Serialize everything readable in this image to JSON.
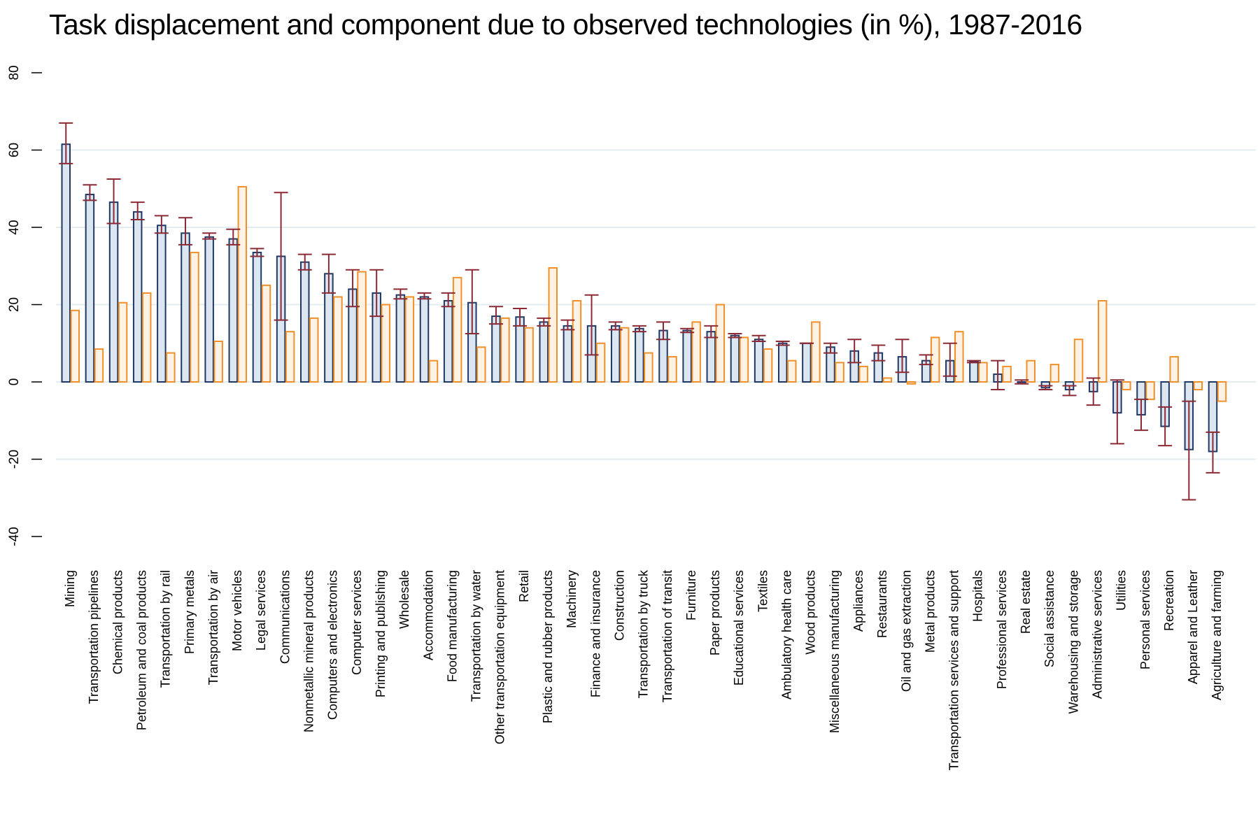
{
  "chart_data": {
    "type": "bar",
    "title": "Task displacement and component due to observed technologies (in %), 1987-2016",
    "xlabel": "",
    "ylabel": "",
    "ylim": [
      -40,
      80
    ],
    "yticks": [
      -40,
      -20,
      0,
      20,
      40,
      60,
      80
    ],
    "grid": true,
    "legend": "none",
    "colors": {
      "primary_fill": "#dce6f0",
      "primary_stroke": "#1f3864",
      "secondary_fill": "#fdf2e4",
      "secondary_stroke": "#f0902a",
      "errorbar": "#8b2a35",
      "grid": "#e3ecef"
    },
    "categories": [
      "Mining",
      "Transportation pipelines",
      "Chemical products",
      "Petroleum and coal products",
      "Transportation by rail",
      "Primary metals",
      "Transportation by air",
      "Motor vehicles",
      "Legal services",
      "Communications",
      "Nonmetallic mineral products",
      "Computers and electronics",
      "Computer services",
      "Printing and publishing",
      "Wholesale",
      "Accommodation",
      "Food manufacturing",
      "Transportation by water",
      "Other transportation equipment",
      "Retail",
      "Plastic and rubber products",
      "Machinery",
      "Finance and insurance",
      "Construction",
      "Transportation by truck",
      "Transportation of transit",
      "Furniture",
      "Paper products",
      "Educational services",
      "Textiles",
      "Ambulatory health care",
      "Wood products",
      "Miscellaneous manufacturing",
      "Appliances",
      "Restaurants",
      "Oil and gas extraction",
      "Metal products",
      "Transportation services and support",
      "Hospitals",
      "Professional services",
      "Real estate",
      "Social assistance",
      "Warehousing and storage",
      "Administrative services",
      "Utilities",
      "Personal services",
      "Recreation",
      "Apparel and Leather",
      "Agriculture and farming"
    ],
    "series": [
      {
        "values": [
          61.5,
          48.5,
          46.5,
          44,
          40.5,
          38.5,
          37.5,
          37,
          33.5,
          32.5,
          31,
          28,
          24,
          23,
          22.5,
          22,
          21,
          20.5,
          17,
          16.8,
          15.5,
          14.5,
          14.5,
          14.5,
          13.8,
          13.3,
          13.3,
          13,
          12,
          11,
          10,
          10,
          9,
          8,
          7.5,
          6.5,
          5.5,
          5.5,
          5.3,
          2,
          0,
          -1.5,
          -2,
          -2.5,
          -8,
          -8.5,
          -11.5,
          -17.5,
          -18
        ],
        "error_low": [
          56.5,
          47,
          41,
          42,
          38.5,
          35.5,
          37,
          35.5,
          32.5,
          16,
          29,
          23,
          19.5,
          17,
          21.5,
          21.5,
          19.5,
          12.5,
          15,
          14.5,
          14.5,
          13.5,
          7,
          13.5,
          13,
          11,
          12.8,
          11.5,
          11.5,
          10.5,
          9.5,
          10,
          7.5,
          5,
          5.5,
          2.5,
          4.5,
          1.5,
          5,
          -2,
          -0.5,
          -2,
          -3.5,
          -6,
          -16,
          -12.5,
          -16.5,
          -30.5,
          -23.5
        ],
        "error_high": [
          67,
          51,
          52.5,
          46.5,
          43,
          42.5,
          38.5,
          39.5,
          34.5,
          49,
          33,
          33,
          29,
          29,
          24,
          23,
          23,
          29,
          19.5,
          19,
          16.5,
          16,
          22.5,
          15.5,
          14.5,
          15.5,
          13.8,
          14.5,
          12.5,
          12,
          10.5,
          10,
          10,
          11,
          9.5,
          11,
          7,
          10,
          5.5,
          5.5,
          0.5,
          -1,
          -1,
          1,
          0.5,
          -4.5,
          -6.5,
          -5,
          -13
        ]
      },
      {
        "values": [
          18.5,
          8.5,
          20.5,
          23,
          7.5,
          33.5,
          10.5,
          50.5,
          25,
          13,
          16.5,
          22,
          28.5,
          20,
          22,
          5.5,
          27,
          9,
          16.5,
          14,
          29.5,
          21,
          10,
          14,
          7.5,
          6.5,
          15.5,
          20,
          11.5,
          8.5,
          5.5,
          15.5,
          5,
          4,
          1,
          -0.5,
          11.5,
          13,
          5,
          4,
          5.5,
          4.5,
          11,
          21,
          -2,
          -4.5,
          6.5,
          -2,
          -5
        ]
      }
    ]
  }
}
